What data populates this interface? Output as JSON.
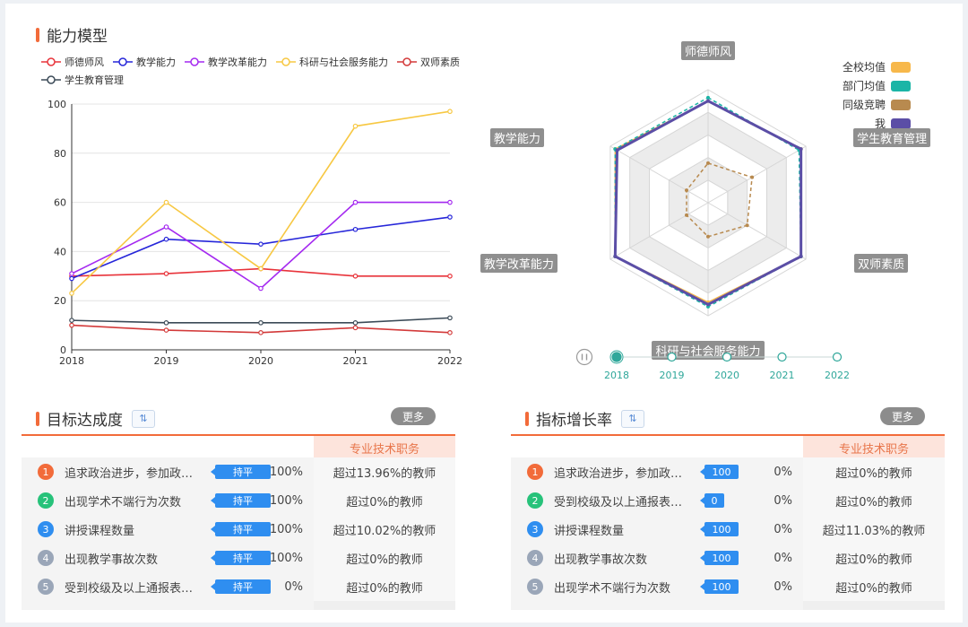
{
  "ability_title": "能力模型",
  "line_chart": {
    "legend": [
      {
        "name": "师德师风",
        "color": "#e8333a"
      },
      {
        "name": "教学能力",
        "color": "#2626d9"
      },
      {
        "name": "教学改革能力",
        "color": "#a429f0"
      },
      {
        "name": "科研与社会服务能力",
        "color": "#f7c843"
      },
      {
        "name": "双师素质",
        "color": "#d33a3a"
      },
      {
        "name": "学生教育管理",
        "color": "#3b4a57"
      }
    ]
  },
  "chart_data": [
    {
      "type": "line",
      "title": "",
      "x": [
        "2018",
        "2019",
        "2020",
        "2021",
        "2022"
      ],
      "ylim": [
        0,
        100
      ],
      "yticks": [
        0,
        20,
        40,
        60,
        80,
        100
      ],
      "grid": true,
      "legend_position": "top-left",
      "series": [
        {
          "name": "师德师风",
          "values": [
            30,
            31,
            33,
            30,
            30
          ]
        },
        {
          "name": "教学能力",
          "values": [
            29,
            45,
            43,
            49,
            54
          ]
        },
        {
          "name": "教学改革能力",
          "values": [
            31,
            50,
            25,
            60,
            60
          ]
        },
        {
          "name": "科研与社会服务能力",
          "values": [
            23,
            60,
            33,
            91,
            97
          ]
        },
        {
          "name": "双师素质",
          "values": [
            10,
            8,
            7,
            9,
            7
          ]
        },
        {
          "name": "学生教育管理",
          "values": [
            12,
            11,
            11,
            11,
            13
          ]
        }
      ]
    },
    {
      "type": "radar",
      "title": "",
      "axes": [
        "师德师风",
        "学生教育管理",
        "双师素质",
        "科研与社会服务能力",
        "教学改革能力",
        "教学能力"
      ],
      "max": 100,
      "legend_position": "top-right",
      "series": [
        {
          "name": "全校均值",
          "color": "#f7b84b",
          "values": [
            90,
            95,
            95,
            88,
            95,
            95
          ]
        },
        {
          "name": "部门均值",
          "color": "#1bb5a6",
          "values": [
            93,
            93,
            95,
            92,
            95,
            95
          ]
        },
        {
          "name": "同级竞聘",
          "color": "#b88a4f",
          "values": [
            35,
            45,
            40,
            30,
            22,
            22
          ]
        },
        {
          "name": "我",
          "color": "#5b4ea6",
          "values": [
            90,
            95,
            95,
            90,
            95,
            93
          ]
        }
      ]
    }
  ],
  "radar_legend": [
    {
      "name": "全校均值",
      "color": "#f7b84b"
    },
    {
      "name": "部门均值",
      "color": "#1bb5a6"
    },
    {
      "name": "同级竞聘",
      "color": "#b88a4f"
    },
    {
      "name": "我",
      "color": "#5b4ea6"
    }
  ],
  "timeline": {
    "years": [
      "2018",
      "2019",
      "2020",
      "2021",
      "2022"
    ],
    "active": "2018",
    "play_icon": "pause-icon"
  },
  "target": {
    "title": "目标达成度",
    "more": "更多",
    "column_header": "专业技术职务",
    "rows": [
      {
        "num": "1",
        "color": "#f26b3a",
        "name": "追求政治进步，参加政…",
        "tag": "持平",
        "pct": "100%",
        "cmp": "超过13.96%的教师"
      },
      {
        "num": "2",
        "color": "#27c27a",
        "name": "出现学术不端行为次数",
        "tag": "持平",
        "pct": "100%",
        "cmp": "超过0%的教师"
      },
      {
        "num": "3",
        "color": "#2f8ef0",
        "name": "讲授课程数量",
        "tag": "持平",
        "pct": "100%",
        "cmp": "超过10.02%的教师"
      },
      {
        "num": "4",
        "color": "#9aa6b8",
        "name": "出现教学事故次数",
        "tag": "持平",
        "pct": "100%",
        "cmp": "超过0%的教师"
      },
      {
        "num": "5",
        "color": "#9aa6b8",
        "name": "受到校级及以上通报表…",
        "tag": "持平",
        "pct": "0%",
        "cmp": "超过0%的教师"
      }
    ]
  },
  "growth": {
    "title": "指标增长率",
    "more": "更多",
    "column_header": "专业技术职务",
    "rows": [
      {
        "num": "1",
        "color": "#f26b3a",
        "name": "追求政治进步，参加政…",
        "tag": "100",
        "pct": "0%",
        "cmp": "超过0%的教师"
      },
      {
        "num": "2",
        "color": "#27c27a",
        "name": "受到校级及以上通报表…",
        "tag": "0",
        "pct": "0%",
        "cmp": "超过0%的教师"
      },
      {
        "num": "3",
        "color": "#2f8ef0",
        "name": "讲授课程数量",
        "tag": "100",
        "pct": "0%",
        "cmp": "超过11.03%的教师"
      },
      {
        "num": "4",
        "color": "#9aa6b8",
        "name": "出现教学事故次数",
        "tag": "100",
        "pct": "0%",
        "cmp": "超过0%的教师"
      },
      {
        "num": "5",
        "color": "#9aa6b8",
        "name": "出现学术不端行为次数",
        "tag": "100",
        "pct": "0%",
        "cmp": "超过0%的教师"
      }
    ]
  }
}
